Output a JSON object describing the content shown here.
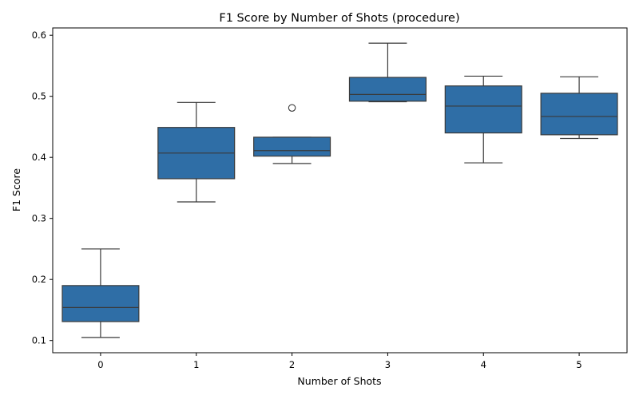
{
  "chart_data": {
    "type": "box",
    "title": "F1 Score by Number of Shots (procedure)",
    "xlabel": "Number of Shots",
    "ylabel": "F1 Score",
    "categories": [
      "0",
      "1",
      "2",
      "3",
      "4",
      "5"
    ],
    "ylim": [
      0.08,
      0.612
    ],
    "yticks": [
      0.1,
      0.2,
      0.3,
      0.4,
      0.5,
      0.6
    ],
    "ytick_labels": [
      "0.1",
      "0.2",
      "0.3",
      "0.4",
      "0.5",
      "0.6"
    ],
    "grid": false,
    "box_color": "#2f6ea6",
    "edge_color": "#3a3a3a",
    "boxes": [
      {
        "category": "0",
        "whisker_low": 0.105,
        "q1": 0.131,
        "median": 0.154,
        "q3": 0.19,
        "whisker_high": 0.25,
        "outliers": []
      },
      {
        "category": "1",
        "whisker_low": 0.327,
        "q1": 0.365,
        "median": 0.407,
        "q3": 0.449,
        "whisker_high": 0.49,
        "outliers": []
      },
      {
        "category": "2",
        "whisker_low": 0.39,
        "q1": 0.402,
        "median": 0.411,
        "q3": 0.433,
        "whisker_high": 0.433,
        "outliers": [
          0.481
        ]
      },
      {
        "category": "3",
        "whisker_low": 0.491,
        "q1": 0.492,
        "median": 0.503,
        "q3": 0.531,
        "whisker_high": 0.587,
        "outliers": []
      },
      {
        "category": "4",
        "whisker_low": 0.391,
        "q1": 0.44,
        "median": 0.484,
        "q3": 0.517,
        "whisker_high": 0.533,
        "outliers": []
      },
      {
        "category": "5",
        "whisker_low": 0.431,
        "q1": 0.437,
        "median": 0.467,
        "q3": 0.505,
        "whisker_high": 0.532,
        "outliers": []
      }
    ]
  }
}
